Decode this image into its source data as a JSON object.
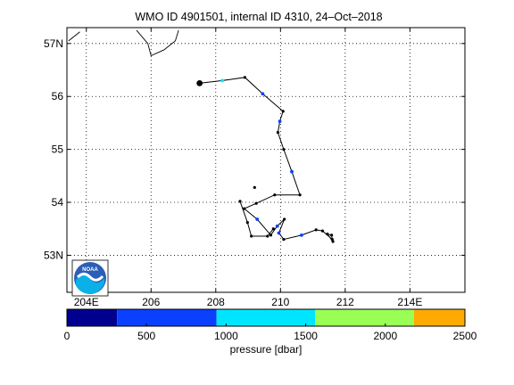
{
  "chart_data": {
    "type": "line",
    "title": "WMO ID 4901501, internal ID 4310, 24–Oct–2018",
    "xlabel": "",
    "ylabel": "",
    "xlim": [
      203.4,
      215.7
    ],
    "ylim": [
      52.3,
      57.3
    ],
    "grid": true,
    "x_tick_labels": [
      {
        "value": 204,
        "label": "204E"
      },
      {
        "value": 206,
        "label": "206"
      },
      {
        "value": 208,
        "label": "208"
      },
      {
        "value": 210,
        "label": "210"
      },
      {
        "value": 212,
        "label": "212"
      },
      {
        "value": 214,
        "label": "214E"
      }
    ],
    "y_tick_labels": [
      {
        "value": 57,
        "label": "57N"
      },
      {
        "value": 56,
        "label": "56"
      },
      {
        "value": 55,
        "label": "55"
      },
      {
        "value": 54,
        "label": "54"
      },
      {
        "value": 53,
        "label": "53N"
      }
    ],
    "coastline": [
      [
        [
          203.45,
          57.05
        ],
        [
          203.8,
          57.22
        ]
      ],
      [
        [
          205.55,
          57.25
        ],
        [
          205.9,
          57.0
        ],
        [
          206.0,
          56.77
        ],
        [
          206.4,
          56.88
        ],
        [
          206.75,
          57.05
        ],
        [
          206.85,
          57.25
        ]
      ]
    ],
    "start_point": {
      "x": 207.5,
      "y": 56.25
    },
    "trajectory": [
      {
        "x": 207.5,
        "y": 56.25,
        "color": "#000000"
      },
      {
        "x": 208.2,
        "y": 56.3,
        "color": "#00e5ff"
      },
      {
        "x": 208.9,
        "y": 56.36,
        "color": "#000000"
      },
      {
        "x": 209.45,
        "y": 56.05,
        "color": "#0a40ff"
      },
      {
        "x": 210.08,
        "y": 55.72,
        "color": "#000000"
      },
      {
        "x": 209.98,
        "y": 55.53,
        "color": "#0a40ff"
      },
      {
        "x": 209.92,
        "y": 55.32,
        "color": "#000000"
      },
      {
        "x": 210.1,
        "y": 55.0,
        "color": "#000000"
      },
      {
        "x": 210.35,
        "y": 54.58,
        "color": "#0a40ff"
      },
      {
        "x": 210.6,
        "y": 54.14,
        "color": "#000000"
      },
      {
        "x": 209.82,
        "y": 54.14,
        "color": "#000000"
      },
      {
        "x": 209.25,
        "y": 53.98,
        "color": "#000000"
      },
      {
        "x": 208.88,
        "y": 53.88,
        "color": "#000000"
      },
      {
        "x": 209.28,
        "y": 53.68,
        "color": "#0a40ff"
      },
      {
        "x": 209.7,
        "y": 53.38,
        "color": "#000000"
      },
      {
        "x": 209.9,
        "y": 53.55,
        "color": "#0a40ff"
      },
      {
        "x": 210.12,
        "y": 53.68,
        "color": "#000000"
      },
      {
        "x": 209.95,
        "y": 53.42,
        "color": "#0a40ff"
      },
      {
        "x": 210.1,
        "y": 53.3,
        "color": "#000000"
      },
      {
        "x": 210.65,
        "y": 53.38,
        "color": "#0a40ff"
      },
      {
        "x": 211.1,
        "y": 53.48,
        "color": "#000000"
      },
      {
        "x": 211.3,
        "y": 53.46,
        "color": "#000000"
      },
      {
        "x": 211.6,
        "y": 53.3,
        "color": "#000000"
      },
      {
        "x": 211.58,
        "y": 53.38,
        "color": "#000000"
      },
      {
        "x": 211.45,
        "y": 53.4,
        "color": "#000000"
      },
      {
        "x": 211.62,
        "y": 53.26,
        "color": "#000000"
      }
    ],
    "side_track": [
      {
        "x": 208.75,
        "y": 54.02,
        "color": "#000000"
      },
      {
        "x": 208.98,
        "y": 53.62,
        "color": "#000000"
      },
      {
        "x": 209.1,
        "y": 53.36,
        "color": "#000000"
      },
      {
        "x": 209.6,
        "y": 53.36,
        "color": "#000000"
      },
      {
        "x": 209.78,
        "y": 53.5,
        "color": "#000000"
      }
    ],
    "extra_points": [
      {
        "x": 209.2,
        "y": 54.28,
        "color": "#000000"
      }
    ],
    "colorbar": {
      "label": "pressure [dbar]",
      "min": 0,
      "max": 2500,
      "ticks": [
        {
          "value": 0,
          "label": "0"
        },
        {
          "value": 500,
          "label": "500"
        },
        {
          "value": 1000,
          "label": "1000"
        },
        {
          "value": 1500,
          "label": "1500"
        },
        {
          "value": 2000,
          "label": "2000"
        },
        {
          "value": 2500,
          "label": "2500"
        }
      ],
      "segments": [
        {
          "from": 0,
          "to": 315,
          "color": "#00008f"
        },
        {
          "from": 315,
          "to": 940,
          "color": "#0a40ff"
        },
        {
          "from": 940,
          "to": 1560,
          "color": "#00e5ff"
        },
        {
          "from": 1560,
          "to": 2180,
          "color": "#99ff55"
        },
        {
          "from": 2180,
          "to": 2500,
          "color": "#ffaa00"
        }
      ]
    }
  }
}
